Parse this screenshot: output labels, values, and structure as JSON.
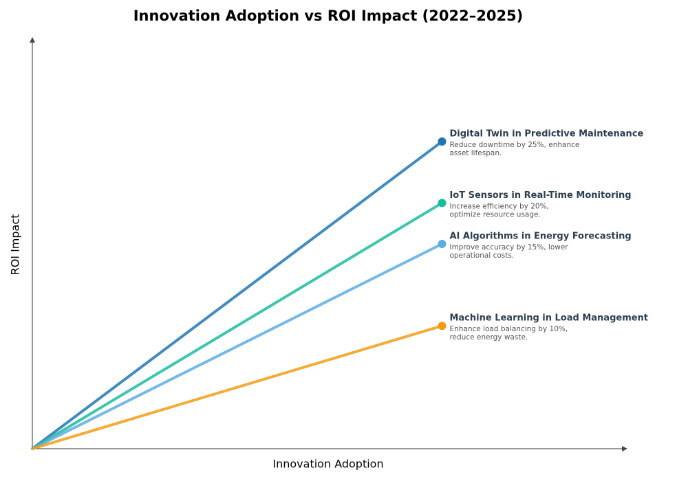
{
  "chart_data": {
    "type": "line",
    "title": "Innovation Adoption vs ROI Impact (2022–2025)",
    "x_label": "Innovation Adoption",
    "y_label": "ROI Impact",
    "xlim": [
      0,
      1
    ],
    "ylim": [
      0,
      1
    ],
    "series": [
      {
        "name": "Digital Twin in Predictive Maintenance",
        "color": "#1f77b4",
        "x": [
          0,
          0.69
        ],
        "values": [
          0,
          0.75
        ],
        "annotation": [
          "Reduce downtime by 25%, enhance",
          "asset lifespan."
        ]
      },
      {
        "name": "IoT Sensors in Real-Time Monitoring",
        "color": "#1abc9c",
        "x": [
          0,
          0.69
        ],
        "values": [
          0,
          0.6
        ],
        "annotation": [
          "Increase efficiency by 20%,",
          "optimize resource usage."
        ]
      },
      {
        "name": "AI Algorithms in Energy Forecasting",
        "color": "#5dade2",
        "x": [
          0,
          0.69
        ],
        "values": [
          0,
          0.5
        ],
        "annotation": [
          "Improve accuracy by 15%, lower",
          "operational costs."
        ]
      },
      {
        "name": "Machine Learning in Load Management",
        "color": "#f39c12",
        "x": [
          0,
          0.69
        ],
        "values": [
          0,
          0.3
        ],
        "annotation": [
          "Enhance load balancing by 10%,",
          "reduce energy waste."
        ]
      }
    ]
  }
}
